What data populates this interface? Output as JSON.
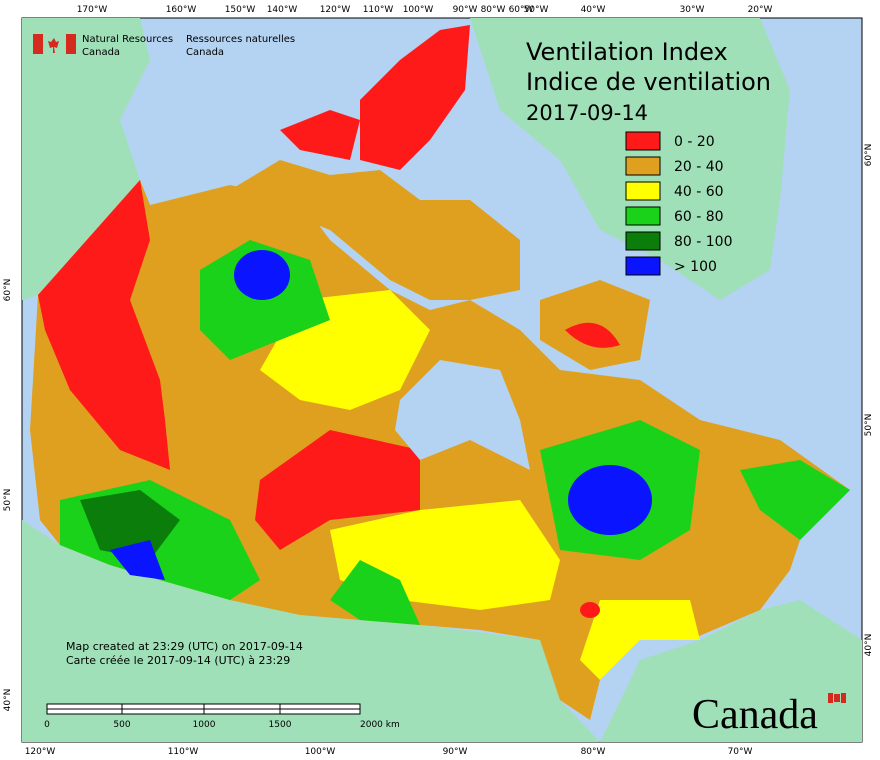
{
  "header": {
    "agency_en": [
      "Natural Resources",
      "Canada"
    ],
    "agency_fr": [
      "Ressources naturelles",
      "Canada"
    ]
  },
  "title": [
    "Ventilation Index",
    "Indice de ventilation",
    "2017-09-14"
  ],
  "legend": [
    {
      "label": "0 - 20",
      "color": "#ff1a1a"
    },
    {
      "label": "20 - 40",
      "color": "#dea01e"
    },
    {
      "label": "40 - 60",
      "color": "#ffff00"
    },
    {
      "label": "60 - 80",
      "color": "#19d219"
    },
    {
      "label": "80 - 100",
      "color": "#0a7d0a"
    },
    {
      "label": "> 100",
      "color": "#0a14ff"
    }
  ],
  "graticule": {
    "top": [
      "170°W",
      "160°W",
      "150°W",
      "140°W",
      "120°W",
      "110°W",
      "100°W",
      "90°W",
      "80°W",
      "60°W",
      "50°W",
      "40°W",
      "30°W",
      "20°W"
    ],
    "bottom": [
      "120°W",
      "110°W",
      "100°W",
      "90°W",
      "80°W",
      "70°W"
    ],
    "left": [
      "60°N",
      "50°N",
      "40°N"
    ],
    "right": [
      "60°N",
      "50°N",
      "40°N"
    ]
  },
  "notes": [
    "Map created at 23:29 (UTC) on 2017-09-14",
    "Carte créée le 2017-09-14 (UTC) à 23:29"
  ],
  "scale_bar": [
    "0",
    "500",
    "1000",
    "1500",
    "2000 km"
  ],
  "wordmark": "Canada"
}
